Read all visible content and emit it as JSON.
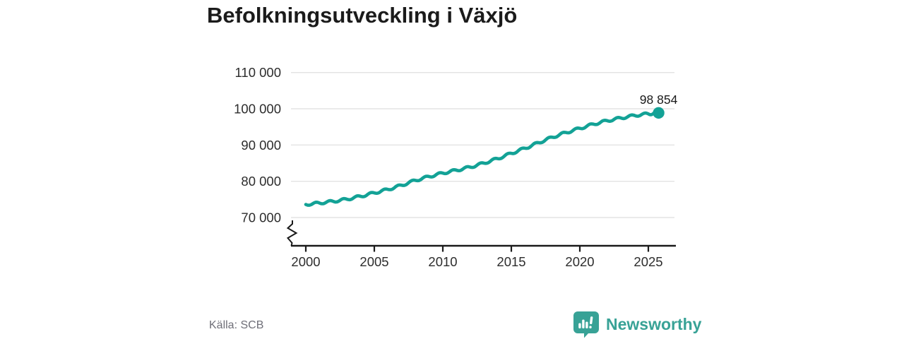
{
  "page": {
    "background": "#ffffff"
  },
  "header": {
    "title": "Befolkningsutveckling i Växjö"
  },
  "footer": {
    "source": "Källa: SCB",
    "brand": "Newsworthy",
    "brand_color": "#38a296"
  },
  "chart_data": {
    "type": "line",
    "title": "Befolkningsutveckling i Växjö",
    "xlabel": "",
    "ylabel": "",
    "grid": true,
    "legend_position": "none",
    "axis_break": true,
    "xlim": [
      1998.9,
      2027.1
    ],
    "ylim": [
      70000,
      110000
    ],
    "x_ticks": [
      2000,
      2005,
      2010,
      2015,
      2020,
      2025
    ],
    "x_tick_labels": [
      "2000",
      "2005",
      "2010",
      "2015",
      "2020",
      "2025"
    ],
    "y_ticks": [
      70000,
      80000,
      90000,
      100000,
      110000
    ],
    "y_tick_labels": [
      "70 000",
      "80 000",
      "90 000",
      "100 000",
      "110 000"
    ],
    "line_color": "#13a296",
    "grid_color": "#e3e3e3",
    "axis_color": "#1a1a1a",
    "tick_label_color": "#2d2d2d",
    "series": [
      {
        "color": "#13a296",
        "x": [
          2000,
          2001,
          2002,
          2003,
          2004,
          2005,
          2006,
          2007,
          2008,
          2009,
          2010,
          2011,
          2012,
          2013,
          2014,
          2015,
          2016,
          2017,
          2018,
          2019,
          2020,
          2021,
          2022,
          2023,
          2024,
          2025,
          2025.75
        ],
        "values": [
          73600,
          74000,
          74450,
          75050,
          75850,
          76800,
          77750,
          78900,
          80250,
          81300,
          82250,
          83050,
          83900,
          85000,
          86250,
          87700,
          89100,
          90650,
          92150,
          93450,
          94600,
          95750,
          96700,
          97450,
          98150,
          98600,
          98854
        ]
      }
    ],
    "end_point": {
      "x": 2025.75,
      "value": 98854,
      "label": "98 854"
    }
  }
}
